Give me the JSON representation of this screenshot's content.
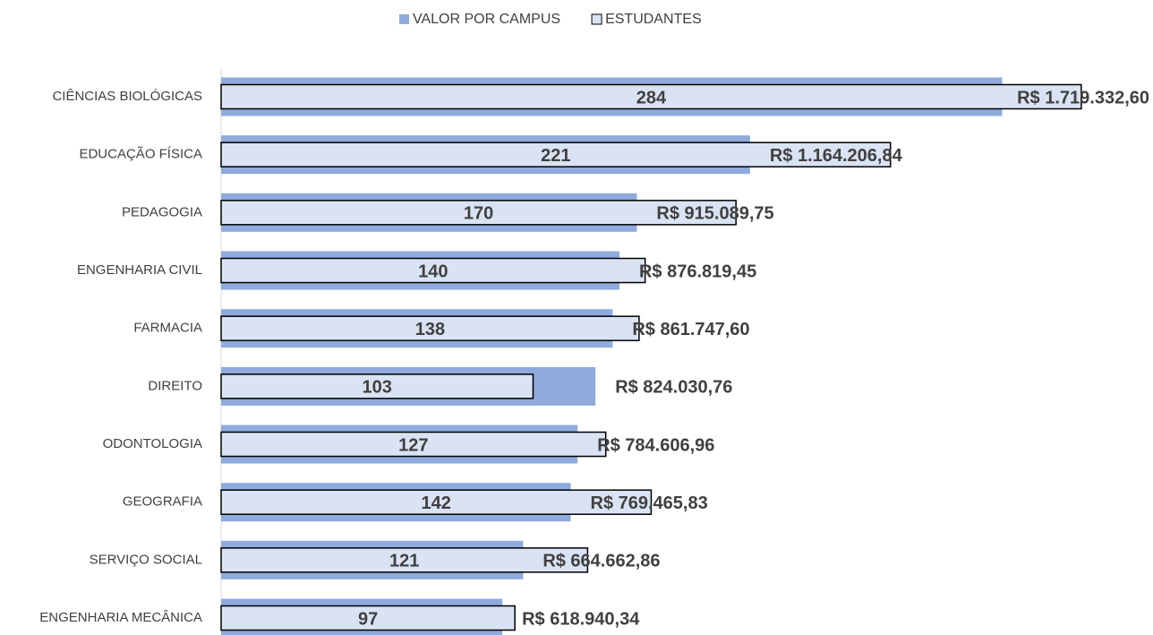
{
  "chart_data": {
    "type": "bar",
    "orientation": "horizontal",
    "categories": [
      "CIÊNCIAS BIOLÓGICAS",
      "EDUCAÇÃO FÍSICA",
      "PEDAGOGIA",
      "ENGENHARIA CIVIL",
      "FARMACIA",
      "DIREITO",
      "ODONTOLOGIA",
      "GEOGRAFIA",
      "SERVIÇO SOCIAL",
      "ENGENHARIA MECÂNICA"
    ],
    "xlim": [
      0,
      2000000
    ],
    "x2lim": [
      0,
      300
    ],
    "legend": "top",
    "series": [
      {
        "name": "VALOR POR CAMPUS",
        "color": "#8faadc",
        "values": [
          1719332.6,
          1164206.84,
          915089.75,
          876819.45,
          861747.6,
          824030.76,
          784606.96,
          769465.83,
          664662.86,
          618940.34
        ],
        "value_labels": [
          "R$ 1.719.332,60",
          "R$ 1.164.206,84",
          "R$ 915.089,75",
          "R$ 876.819,45",
          "R$ 861.747,60",
          "R$ 824.030,76",
          "R$ 784.606,96",
          "R$ 769.465,83",
          "R$ 664.662,86",
          "R$ 618.940,34"
        ]
      },
      {
        "name": "ESTUDANTES",
        "color": "#dae3f3",
        "axis": "x2",
        "values": [
          284,
          221,
          170,
          140,
          138,
          103,
          127,
          142,
          121,
          97
        ]
      }
    ]
  }
}
